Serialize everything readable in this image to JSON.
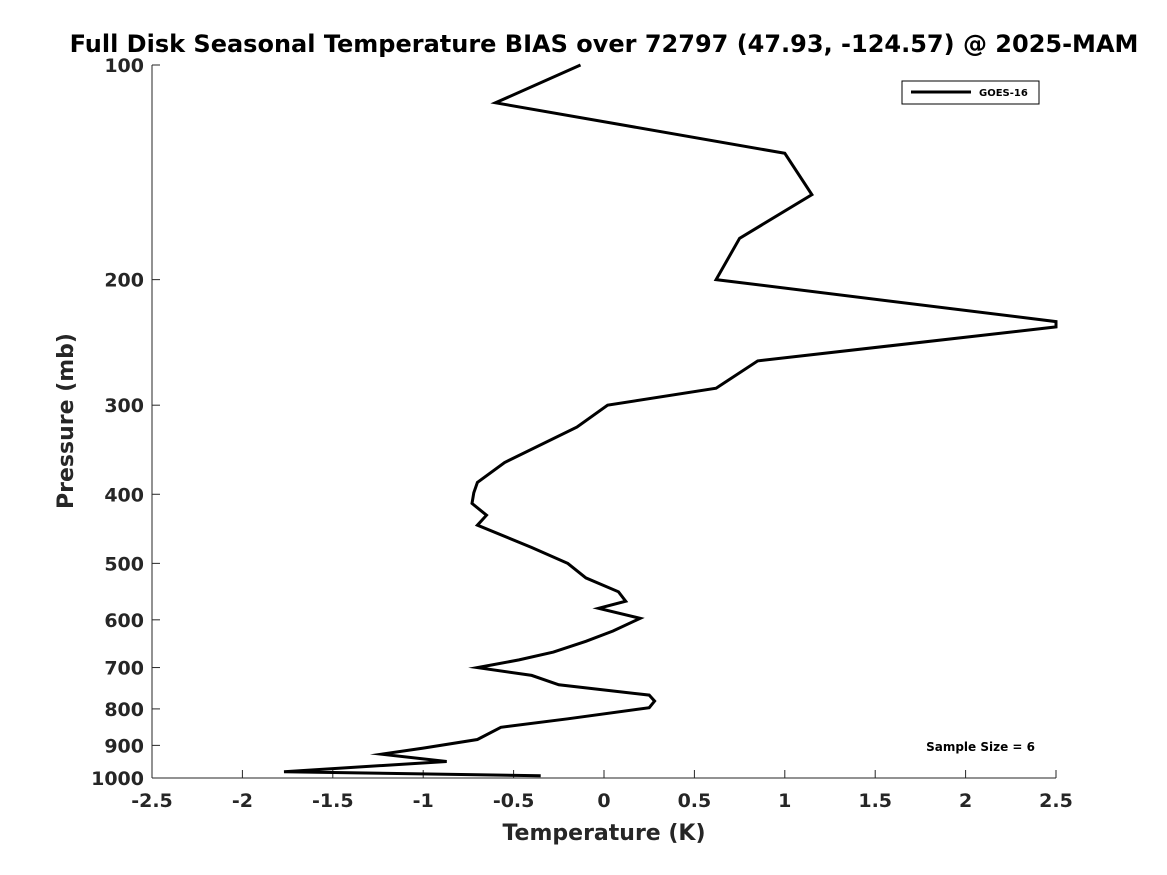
{
  "chart_data": {
    "type": "line",
    "title": "Full Disk Seasonal Temperature BIAS over 72797 (47.93, -124.57) @ 2025-MAM",
    "xlabel": "Temperature (K)",
    "ylabel": "Pressure (mb)",
    "xlim": [
      -2.5,
      2.5
    ],
    "ylim": [
      100,
      1000
    ],
    "y_scale": "log",
    "y_reversed": true,
    "x_ticks": [
      -2.5,
      -2,
      -1.5,
      -1,
      -0.5,
      0,
      0.5,
      1,
      1.5,
      2,
      2.5
    ],
    "x_tick_labels": [
      "-2.5",
      "-2",
      "-1.5",
      "-1",
      "-0.5",
      "0",
      "0.5",
      "1",
      "1.5",
      "2",
      "2.5"
    ],
    "y_ticks": [
      100,
      200,
      300,
      400,
      500,
      600,
      700,
      800,
      900,
      1000
    ],
    "y_tick_labels": [
      "100",
      "200",
      "300",
      "400",
      "500",
      "600",
      "700",
      "800",
      "900",
      "1000"
    ],
    "grid": false,
    "legend_position": "top-right",
    "series": [
      {
        "name": "GOES-16",
        "color": "#000000",
        "x": [
          -0.13,
          -0.6,
          1.0,
          1.15,
          0.75,
          0.62,
          2.5,
          2.5,
          0.85,
          0.62,
          0.02,
          -0.15,
          -0.55,
          -0.7,
          -0.72,
          -0.73,
          -0.65,
          -0.7,
          -0.4,
          -0.2,
          -0.1,
          0.08,
          0.12,
          -0.03,
          0.2,
          0.05,
          -0.1,
          -0.28,
          -0.47,
          -0.7,
          -0.4,
          -0.25,
          0.25,
          0.28,
          0.25,
          -0.2,
          -0.57,
          -0.7,
          -1.0,
          -1.23,
          -0.87,
          -1.77,
          -0.35
        ],
        "y": [
          100,
          113,
          133,
          152,
          175,
          200,
          229,
          233,
          260,
          284,
          300,
          322,
          361,
          385,
          398,
          412,
          428,
          442,
          475,
          500,
          524,
          548,
          565,
          578,
          597,
          622,
          643,
          666,
          683,
          700,
          718,
          740,
          765,
          780,
          797,
          826,
          849,
          883,
          908,
          926,
          948,
          980,
          993
        ]
      }
    ],
    "annotations": [
      {
        "text": "Sample Size = 6",
        "position": "bottom-right"
      }
    ]
  }
}
